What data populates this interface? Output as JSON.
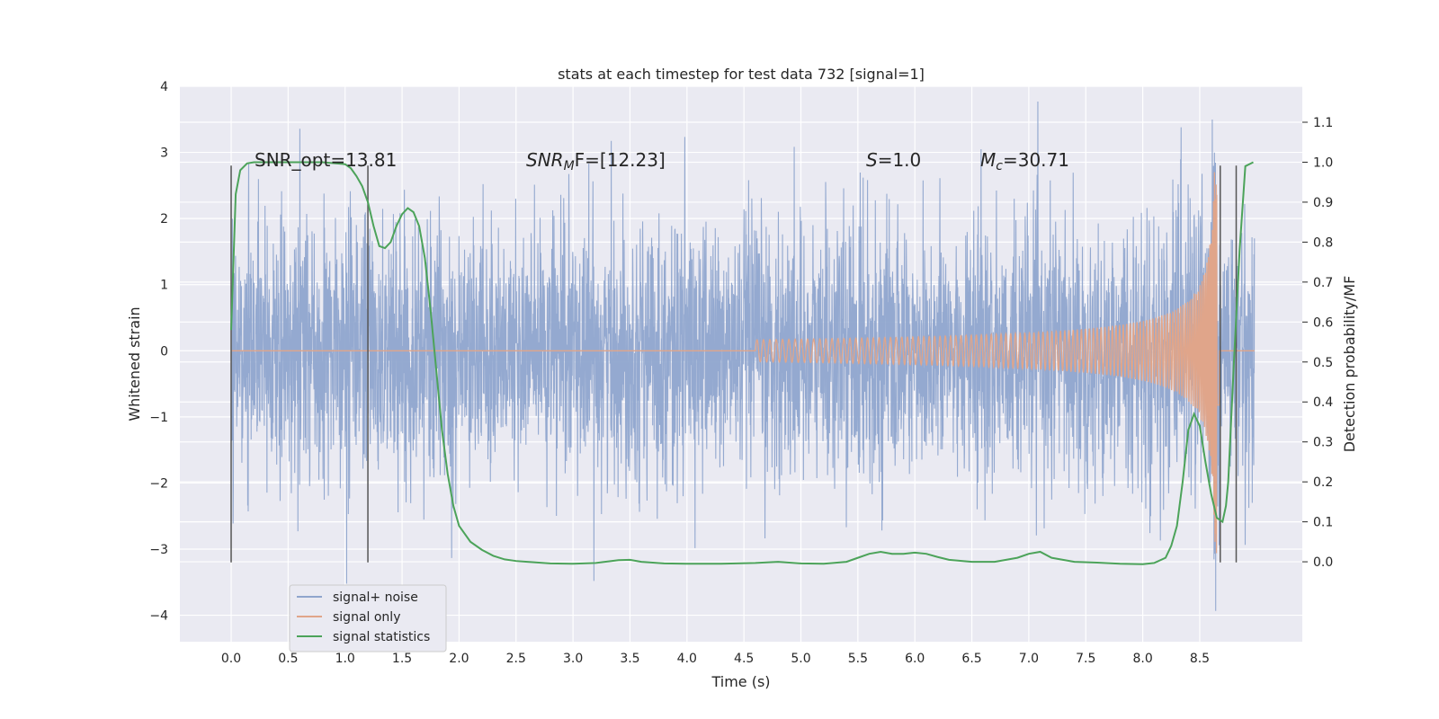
{
  "chart_data": {
    "type": "line",
    "title": "stats at each timestep for test data 732 [signal=1]",
    "xlabel": "Time (s)",
    "ylabel": "Whitened strain",
    "y2label": "Detection probability/MF",
    "xlim": [
      -0.45,
      9.4
    ],
    "ylim": [
      -4.4,
      4.0
    ],
    "y2lim": [
      -0.2,
      1.19
    ],
    "xticks": [
      "0.0",
      "0.5",
      "1.0",
      "1.5",
      "2.0",
      "2.5",
      "3.0",
      "3.5",
      "4.0",
      "4.5",
      "5.0",
      "5.5",
      "6.0",
      "6.5",
      "7.0",
      "7.5",
      "8.0",
      "8.5"
    ],
    "yticks": [
      "4",
      "3",
      "2",
      "1",
      "0",
      "−1",
      "−2",
      "−3",
      "−4"
    ],
    "y2ticks": [
      "1.1",
      "1.0",
      "0.9",
      "0.8",
      "0.7",
      "0.6",
      "0.5",
      "0.4",
      "0.3",
      "0.2",
      "0.1",
      "0.0"
    ],
    "grid": true,
    "legend": {
      "position": "lower-left",
      "entries": [
        {
          "name": "signal+ noise",
          "color": "#8fa5cd"
        },
        {
          "name": "signal only",
          "color": "#e0a58a"
        },
        {
          "name": "signal statistics",
          "color": "#4ca35a"
        }
      ]
    },
    "annotations": {
      "snr_opt": "SNR_opt=13.81",
      "snr_mf_prefix": "SNR",
      "snr_mf_sub": "M",
      "snr_mf_suffix": "F=[12.23]",
      "s_prefix": "S",
      "s_suffix": "=1.0",
      "mc_prefix": "M",
      "mc_sub": "c",
      "mc_suffix": "=30.71"
    },
    "series": [
      {
        "name": "signal+ noise",
        "color": "#8fa5cd",
        "description_range": {
          "x": [
            0.0,
            8.98
          ],
          "y": [
            -3.6,
            3.6
          ]
        }
      },
      {
        "name": "signal only",
        "color": "#e0a58a",
        "chirp": {
          "start_x": 4.6,
          "merger_x": 8.65,
          "peak_amplitude": 3.1
        }
      },
      {
        "name": "signal statistics",
        "color": "#4ca35a",
        "x": [
          0.0,
          0.04,
          0.08,
          0.14,
          0.2,
          0.3,
          0.5,
          0.8,
          1.0,
          1.05,
          1.1,
          1.15,
          1.2,
          1.25,
          1.3,
          1.35,
          1.4,
          1.45,
          1.5,
          1.55,
          1.6,
          1.65,
          1.7,
          1.75,
          1.8,
          1.85,
          1.9,
          1.95,
          2.0,
          2.1,
          2.2,
          2.3,
          2.4,
          2.5,
          2.6,
          2.8,
          3.0,
          3.2,
          3.4,
          3.5,
          3.6,
          3.8,
          4.0,
          4.3,
          4.6,
          4.8,
          5.0,
          5.2,
          5.4,
          5.5,
          5.6,
          5.7,
          5.8,
          5.9,
          6.0,
          6.1,
          6.2,
          6.3,
          6.5,
          6.7,
          6.9,
          7.0,
          7.1,
          7.2,
          7.4,
          7.6,
          7.8,
          8.0,
          8.1,
          8.2,
          8.25,
          8.3,
          8.35,
          8.4,
          8.45,
          8.5,
          8.55,
          8.6,
          8.65,
          8.7,
          8.73,
          8.75,
          8.8,
          8.85,
          8.9,
          8.97
        ],
        "y": [
          0.58,
          0.92,
          0.98,
          0.997,
          1.0,
          1.0,
          1.0,
          1.0,
          0.995,
          0.985,
          0.965,
          0.94,
          0.9,
          0.84,
          0.79,
          0.785,
          0.8,
          0.84,
          0.87,
          0.885,
          0.875,
          0.84,
          0.76,
          0.63,
          0.48,
          0.33,
          0.22,
          0.14,
          0.09,
          0.05,
          0.03,
          0.015,
          0.006,
          0.002,
          0.0,
          -0.004,
          -0.005,
          -0.003,
          0.004,
          0.005,
          0.0,
          -0.004,
          -0.005,
          -0.005,
          -0.003,
          0.0,
          -0.004,
          -0.005,
          0.0,
          0.01,
          0.02,
          0.025,
          0.02,
          0.02,
          0.023,
          0.02,
          0.012,
          0.005,
          0.0,
          0.0,
          0.01,
          0.02,
          0.025,
          0.01,
          0.0,
          -0.002,
          -0.005,
          -0.006,
          -0.003,
          0.01,
          0.04,
          0.09,
          0.2,
          0.33,
          0.37,
          0.34,
          0.25,
          0.17,
          0.11,
          0.1,
          0.14,
          0.2,
          0.5,
          0.78,
          0.99,
          1.0
        ]
      }
    ],
    "vlines": [
      {
        "x": 0.0,
        "y": [
          2.8,
          -3.2
        ],
        "color": "#555555"
      },
      {
        "x": 1.2,
        "y": [
          2.8,
          -3.2
        ],
        "color": "#555555"
      },
      {
        "x": 8.68,
        "y": [
          2.8,
          -3.2
        ],
        "color": "#555555"
      },
      {
        "x": 8.82,
        "y": [
          2.8,
          -3.2
        ],
        "color": "#555555"
      }
    ]
  }
}
